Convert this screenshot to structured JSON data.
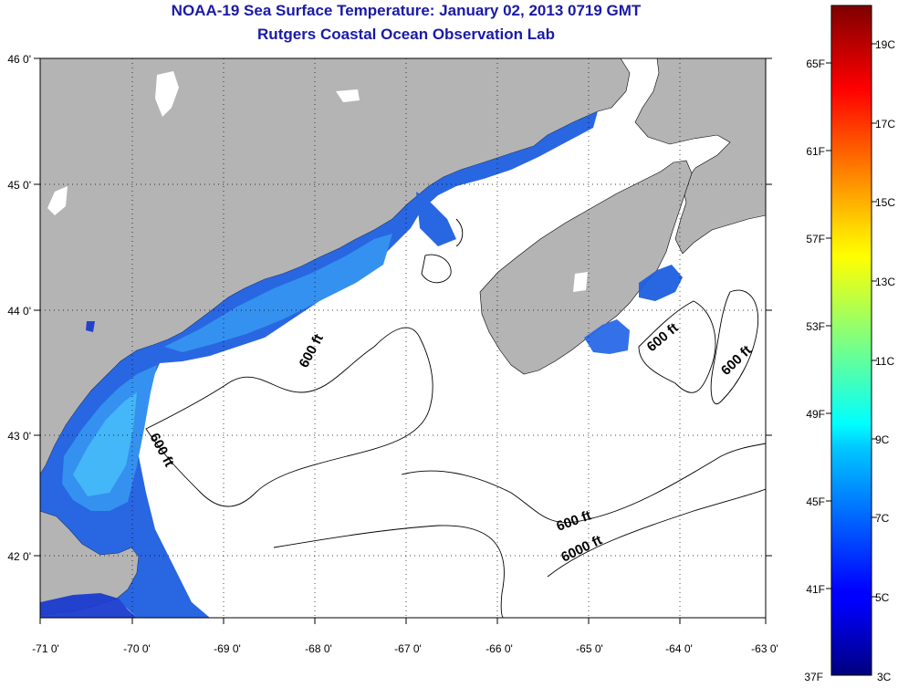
{
  "title": {
    "line1": "NOAA-19 Sea Surface Temperature:  January 02, 2013 0719 GMT",
    "line2": "Rutgers Coastal Ocean Observation Lab"
  },
  "map": {
    "lon_labels": [
      "-71 0'",
      "-70 0'",
      "-69 0'",
      "-68 0'",
      "-67 0'",
      "-66 0'",
      "-65 0'",
      "-64 0'",
      "-63 0'"
    ],
    "lat_labels": [
      "46 0'",
      "45 0'",
      "44 0'",
      "43 0'",
      "42 0'"
    ],
    "contour_labels": [
      "600 ft",
      "600 ft",
      "600 ft",
      "600 ft",
      "600 ft",
      "6000 ft"
    ],
    "colors": {
      "land": "#b4b4b4",
      "ocean_nodata": "#ffffff"
    }
  },
  "colorbar": {
    "celsius_labels": [
      "19C",
      "17C",
      "15C",
      "13C",
      "11C",
      "9C",
      "7C",
      "5C",
      "3C"
    ],
    "fahrenheit_labels": [
      "65F",
      "61F",
      "57F",
      "53F",
      "49F",
      "45F",
      "41F",
      "37F"
    ],
    "range_c": [
      3,
      20
    ]
  }
}
